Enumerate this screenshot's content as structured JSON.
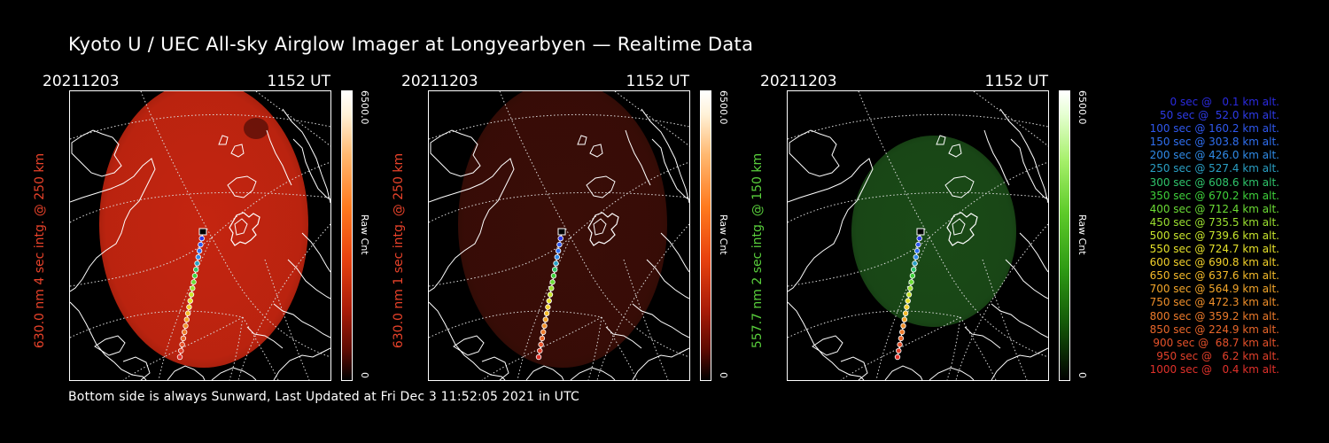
{
  "title": "Kyoto U / UEC All-sky Airglow Imager at Longyearbyen — Realtime Data",
  "footer": "Bottom side is always Sunward, Last Updated at Fri Dec  3 11:52:05 2021 in UTC",
  "panels": [
    {
      "date": "20211203",
      "time": "1152 UT",
      "ylabel": "630.0 nm 4 sec intg. @ 250 km",
      "ylabel_color": "#e8422a",
      "colorbar_max": "6500.0",
      "colorbar_min": "0",
      "colorbar_unit": "Raw Cnt",
      "image_color": "#c42510",
      "image_brightness": 0.85,
      "colorbar_gradient": "linear-gradient(to bottom,#ffffff 0%,#fff2d8 8%,#ffb870 22%,#ff7a1e 40%,#e8420e 58%,#a81b08 76%,#5a0a02 90%,#000000 100%)"
    },
    {
      "date": "20211203",
      "time": "1152 UT",
      "ylabel": "630.0 nm 1 sec intg. @ 250 km",
      "ylabel_color": "#e8422a",
      "colorbar_max": "6500.0",
      "colorbar_min": "0",
      "colorbar_unit": "Raw Cnt",
      "image_color": "#3a0d07",
      "image_brightness": 0.3,
      "colorbar_gradient": "linear-gradient(to bottom,#ffffff 0%,#fff2d8 8%,#ffb870 22%,#ff7a1e 40%,#e8420e 58%,#a81b08 76%,#5a0a02 90%,#000000 100%)"
    },
    {
      "date": "20211203",
      "time": "1152 UT",
      "ylabel": "557.7 nm 2 sec intg. @ 150 km",
      "ylabel_color": "#59cf3c",
      "colorbar_max": "6500.0",
      "colorbar_min": "0",
      "colorbar_unit": "Raw Cnt",
      "image_color": "#1a4a17",
      "image_brightness": 0.35,
      "colorbar_gradient": "linear-gradient(to bottom,#ffffff 0%,#e6ffd2 8%,#a6f06a 24%,#5ecb2a 42%,#2e9a14 62%,#145a08 80%,#000000 100%)"
    }
  ],
  "trajectory_legend": [
    {
      "sec": 0,
      "alt": 0.1,
      "color": "#2a2adf"
    },
    {
      "sec": 50,
      "alt": 52.0,
      "color": "#2d3be8"
    },
    {
      "sec": 100,
      "alt": 160.2,
      "color": "#2f58ee"
    },
    {
      "sec": 150,
      "alt": 303.8,
      "color": "#2f6ff0"
    },
    {
      "sec": 200,
      "alt": 426.0,
      "color": "#2f8ae6"
    },
    {
      "sec": 250,
      "alt": 527.4,
      "color": "#2a9fc4"
    },
    {
      "sec": 300,
      "alt": 608.6,
      "color": "#2fc46a"
    },
    {
      "sec": 350,
      "alt": 670.2,
      "color": "#3fd13a"
    },
    {
      "sec": 400,
      "alt": 712.4,
      "color": "#6bdc34"
    },
    {
      "sec": 450,
      "alt": 735.5,
      "color": "#9be030"
    },
    {
      "sec": 500,
      "alt": 739.6,
      "color": "#c8e52c"
    },
    {
      "sec": 550,
      "alt": 724.7,
      "color": "#e6e22a"
    },
    {
      "sec": 600,
      "alt": 690.8,
      "color": "#f2d02a"
    },
    {
      "sec": 650,
      "alt": 637.6,
      "color": "#f5bb2a"
    },
    {
      "sec": 700,
      "alt": 564.9,
      "color": "#f3a62a"
    },
    {
      "sec": 750,
      "alt": 472.3,
      "color": "#f08f2a"
    },
    {
      "sec": 800,
      "alt": 359.2,
      "color": "#ec7a2a"
    },
    {
      "sec": 850,
      "alt": 224.9,
      "color": "#e8662a"
    },
    {
      "sec": 900,
      "alt": 68.7,
      "color": "#e5512a"
    },
    {
      "sec": 950,
      "alt": 6.2,
      "color": "#e2402a"
    },
    {
      "sec": 1000,
      "alt": 0.4,
      "color": "#e0312a"
    }
  ]
}
